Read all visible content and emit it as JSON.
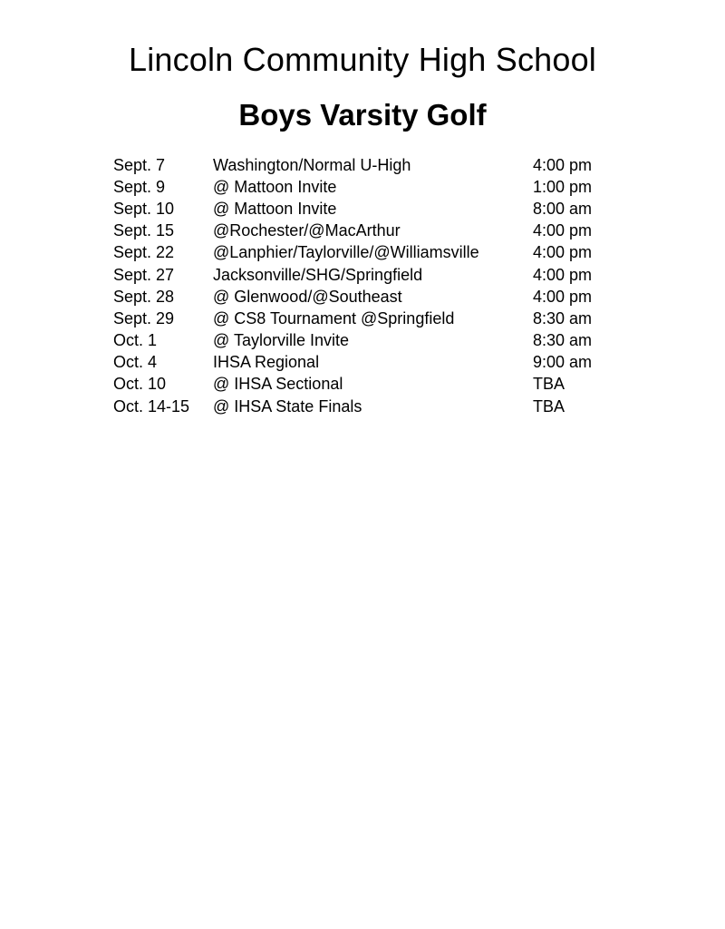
{
  "page": {
    "title": "Lincoln Community High School",
    "subtitle": "Boys Varsity Golf"
  },
  "schedule": {
    "columns": [
      "date",
      "event",
      "time"
    ],
    "rows": [
      {
        "date": "Sept. 7",
        "event": "Washington/Normal U-High",
        "time": "4:00 pm"
      },
      {
        "date": "Sept. 9",
        "event": "@ Mattoon Invite",
        "time": "1:00 pm"
      },
      {
        "date": "Sept. 10",
        "event": "@ Mattoon Invite",
        "time": "8:00 am"
      },
      {
        "date": "Sept. 15",
        "event": "@Rochester/@MacArthur",
        "time": "4:00 pm"
      },
      {
        "date": "Sept. 22",
        "event": "@Lanphier/Taylorville/@Williamsville",
        "time": "4:00 pm"
      },
      {
        "date": "Sept. 27",
        "event": "Jacksonville/SHG/Springfield",
        "time": "4:00 pm"
      },
      {
        "date": "Sept. 28",
        "event": "@ Glenwood/@Southeast",
        "time": "4:00 pm"
      },
      {
        "date": "Sept. 29",
        "event": "@ CS8 Tournament @Springfield",
        "time": "8:30 am"
      },
      {
        "date": "Oct. 1",
        "event": "@ Taylorville Invite",
        "time": "8:30 am"
      },
      {
        "date": "Oct. 4",
        "event": "IHSA Regional",
        "time": "9:00 am"
      },
      {
        "date": "Oct. 10",
        "event": "@ IHSA Sectional",
        "time": "TBA"
      },
      {
        "date": "Oct. 14-15",
        "event": "@ IHSA State Finals",
        "time": "TBA"
      }
    ]
  },
  "colors": {
    "text": "#000000",
    "background": "#ffffff"
  }
}
